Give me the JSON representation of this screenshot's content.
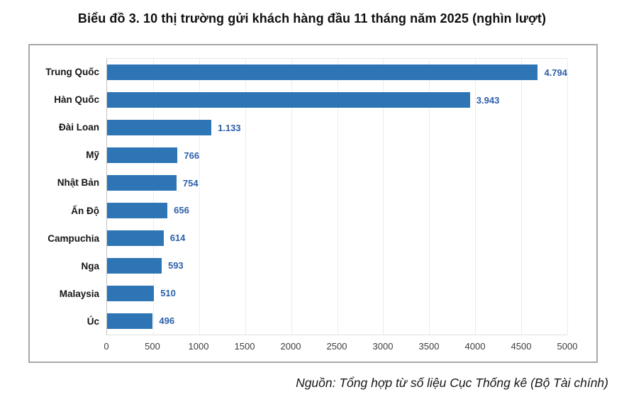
{
  "title": "Biểu đồ 3. 10 thị trường gửi khách hàng đầu 11 tháng năm 2025 (nghìn lượt)",
  "source": "Nguồn: Tổng hợp từ số liệu Cục Thống kê (Bộ Tài chính)",
  "colors": {
    "bar": "#2E75B6",
    "value_label": "#2C5FA9",
    "category_label": "#161616",
    "tick_label": "#3D3D3D",
    "card_border": "#A8A8A8",
    "axis_line": "#C4C4C4",
    "gridline": "#ECECEC"
  },
  "chart_data": {
    "type": "bar",
    "orientation": "horizontal",
    "title": "Biểu đồ 3. 10 thị trường gửi khách hàng đầu 11 tháng năm 2025 (nghìn lượt)",
    "unit": "nghìn lượt",
    "categories": [
      "Trung Quốc",
      "Hàn Quốc",
      "Đài Loan",
      "Mỹ",
      "Nhật Bản",
      "Ấn Độ",
      "Campuchia",
      "Nga",
      "Malaysia",
      "Úc"
    ],
    "values": [
      4794,
      3943,
      1133,
      766,
      754,
      656,
      614,
      593,
      510,
      496
    ],
    "value_labels": [
      "4.794",
      "3.943",
      "1.133",
      "766",
      "754",
      "656",
      "614",
      "593",
      "510",
      "496"
    ],
    "xlim": [
      0,
      5000
    ],
    "x_ticks": [
      0,
      500,
      1000,
      1500,
      2000,
      2500,
      3000,
      3500,
      4000,
      4500,
      5000
    ],
    "grid": true,
    "legend": false,
    "source": "Nguồn: Tổng hợp từ số liệu Cục Thống kê (Bộ Tài chính)"
  }
}
